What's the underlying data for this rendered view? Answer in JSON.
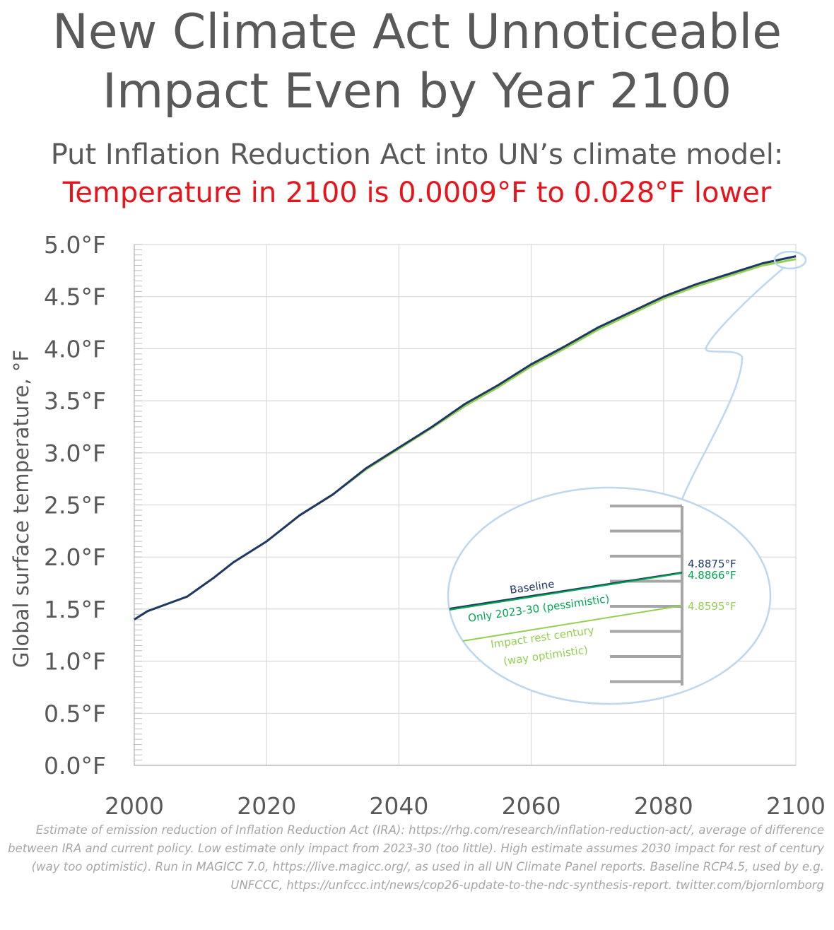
{
  "title_line1": "New Climate Act Unnoticeable",
  "title_line2": "Impact Even by Year 2100",
  "subtitle": "Put Inflation Reduction Act into UN’s climate model:",
  "headline": "Temperature in 2100 is 0.0009°F to 0.028°F lower",
  "footnote": "Estimate of emission reduction of Inflation Reduction Act (IRA): https://rhg.com/research/inflation-reduction-act/, average of difference between IRA and current policy. Low estimate only impact from 2023-30 (too little). High estimate assumes 2030 impact for rest of century (way too optimistic). Run in MAGICC 7.0, https://live.magicc.org/, as used in all UN Climate Panel reports. Baseline RCP4.5, used by e.g. UNFCCC, https://unfccc.int/news/cop26-update-to-the-ndc-synthesis-report. twitter.com/bjornlomborg",
  "colors": {
    "baseline": "#1f3864",
    "pessimistic": "#00a650",
    "optimistic": "#92d050",
    "title": "#595959",
    "headline": "#e8141c",
    "callout": "#bdd7ee",
    "grid": "#d9d9d9"
  },
  "chart_data": {
    "type": "line",
    "xlabel": "",
    "ylabel": "Global surface temperature, °F",
    "xlim": [
      2000,
      2100
    ],
    "ylim": [
      0,
      5
    ],
    "xticks": [
      "2000",
      "2020",
      "2040",
      "2060",
      "2080",
      "2100"
    ],
    "yticks": [
      "0.0°F",
      "0.5°F",
      "1.0°F",
      "1.5°F",
      "2.0°F",
      "2.5°F",
      "3.0°F",
      "3.5°F",
      "4.0°F",
      "4.5°F",
      "5.0°F"
    ],
    "grid": true,
    "x": [
      2000,
      2002,
      2005,
      2008,
      2010,
      2012,
      2015,
      2018,
      2020,
      2025,
      2030,
      2035,
      2040,
      2045,
      2050,
      2055,
      2060,
      2065,
      2070,
      2075,
      2080,
      2085,
      2090,
      2095,
      2100
    ],
    "series": [
      {
        "name": "Baseline",
        "values": [
          1.4,
          1.48,
          1.55,
          1.62,
          1.71,
          1.8,
          1.95,
          2.07,
          2.15,
          2.4,
          2.6,
          2.85,
          3.05,
          3.25,
          3.47,
          3.65,
          3.85,
          4.02,
          4.2,
          4.35,
          4.5,
          4.62,
          4.72,
          4.82,
          4.8875
        ]
      },
      {
        "name": "Only 2023-30 (pessimistic)",
        "values": [
          1.4,
          1.48,
          1.55,
          1.62,
          1.71,
          1.8,
          1.95,
          2.07,
          2.15,
          2.4,
          2.6,
          2.85,
          3.05,
          3.25,
          3.47,
          3.65,
          3.85,
          4.02,
          4.2,
          4.35,
          4.5,
          4.62,
          4.72,
          4.82,
          4.8866
        ]
      },
      {
        "name": "Impact rest century (way optimistic)",
        "values": [
          1.4,
          1.48,
          1.55,
          1.62,
          1.71,
          1.8,
          1.95,
          2.07,
          2.15,
          2.4,
          2.6,
          2.84,
          3.04,
          3.24,
          3.45,
          3.63,
          3.83,
          4.0,
          4.18,
          4.33,
          4.48,
          4.6,
          4.7,
          4.8,
          4.8595
        ]
      }
    ],
    "zoom_inset": {
      "labels": {
        "baseline": "Baseline",
        "pessimistic": "Only 2023-30 (pessimistic)",
        "optimistic_line1": "Impact rest century",
        "optimistic_line2": "(way optimistic)"
      },
      "end_values": {
        "baseline": "4.8875°F",
        "pessimistic": "4.8866°F",
        "optimistic": "4.8595°F"
      }
    }
  }
}
